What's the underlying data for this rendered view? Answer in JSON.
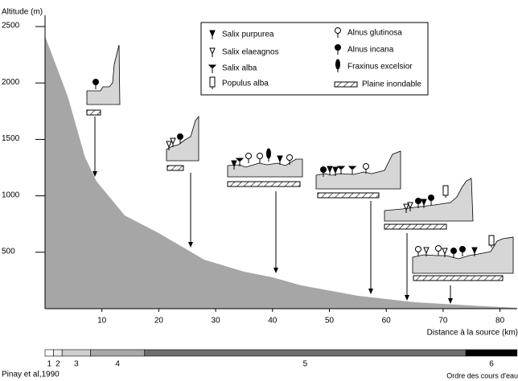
{
  "chart_data": {
    "type": "area",
    "color": "#a6a6a6",
    "y_label": "Altitude (m)",
    "x_label": "Distance à la source (km)",
    "x": [
      0,
      4,
      7,
      9,
      14,
      20,
      28,
      35,
      40,
      45,
      55,
      65,
      75,
      83
    ],
    "values": [
      2415,
      1880,
      1346,
      1132,
      826,
      670,
      434,
      328,
      278,
      207,
      114,
      57,
      28,
      7
    ],
    "xlim": [
      0,
      83
    ],
    "ylim": [
      0,
      2600
    ],
    "xticks": [
      10,
      20,
      30,
      40,
      50,
      60,
      70,
      80
    ],
    "yticks": [
      500,
      1000,
      1500,
      2000,
      2500
    ],
    "legend": [
      "Salix purpurea",
      "Salix elaeagnos",
      "Salix alba",
      "Populus alba",
      "Alnus glutinosa",
      "Alnus incana",
      "Fraxinus excelsior",
      "Plaine inondable"
    ],
    "stream_order": {
      "label": "Ordre des cours d'eau",
      "segments": [
        {
          "label": "1",
          "start": 0,
          "end": 1.5,
          "color": "#ffffff"
        },
        {
          "label": "2",
          "start": 1.5,
          "end": 3,
          "color": "#ececec"
        },
        {
          "label": "3",
          "start": 3,
          "end": 8,
          "color": "#cfcfcf"
        },
        {
          "label": "4",
          "start": 8,
          "end": 17.5,
          "color": "#a8a8a8"
        },
        {
          "label": "5",
          "start": 17.5,
          "end": 74,
          "color": "#6e6e6e"
        },
        {
          "label": "6",
          "start": 74,
          "end": 83,
          "color": "#000000"
        }
      ]
    },
    "source": "Pinay et al,1990"
  }
}
